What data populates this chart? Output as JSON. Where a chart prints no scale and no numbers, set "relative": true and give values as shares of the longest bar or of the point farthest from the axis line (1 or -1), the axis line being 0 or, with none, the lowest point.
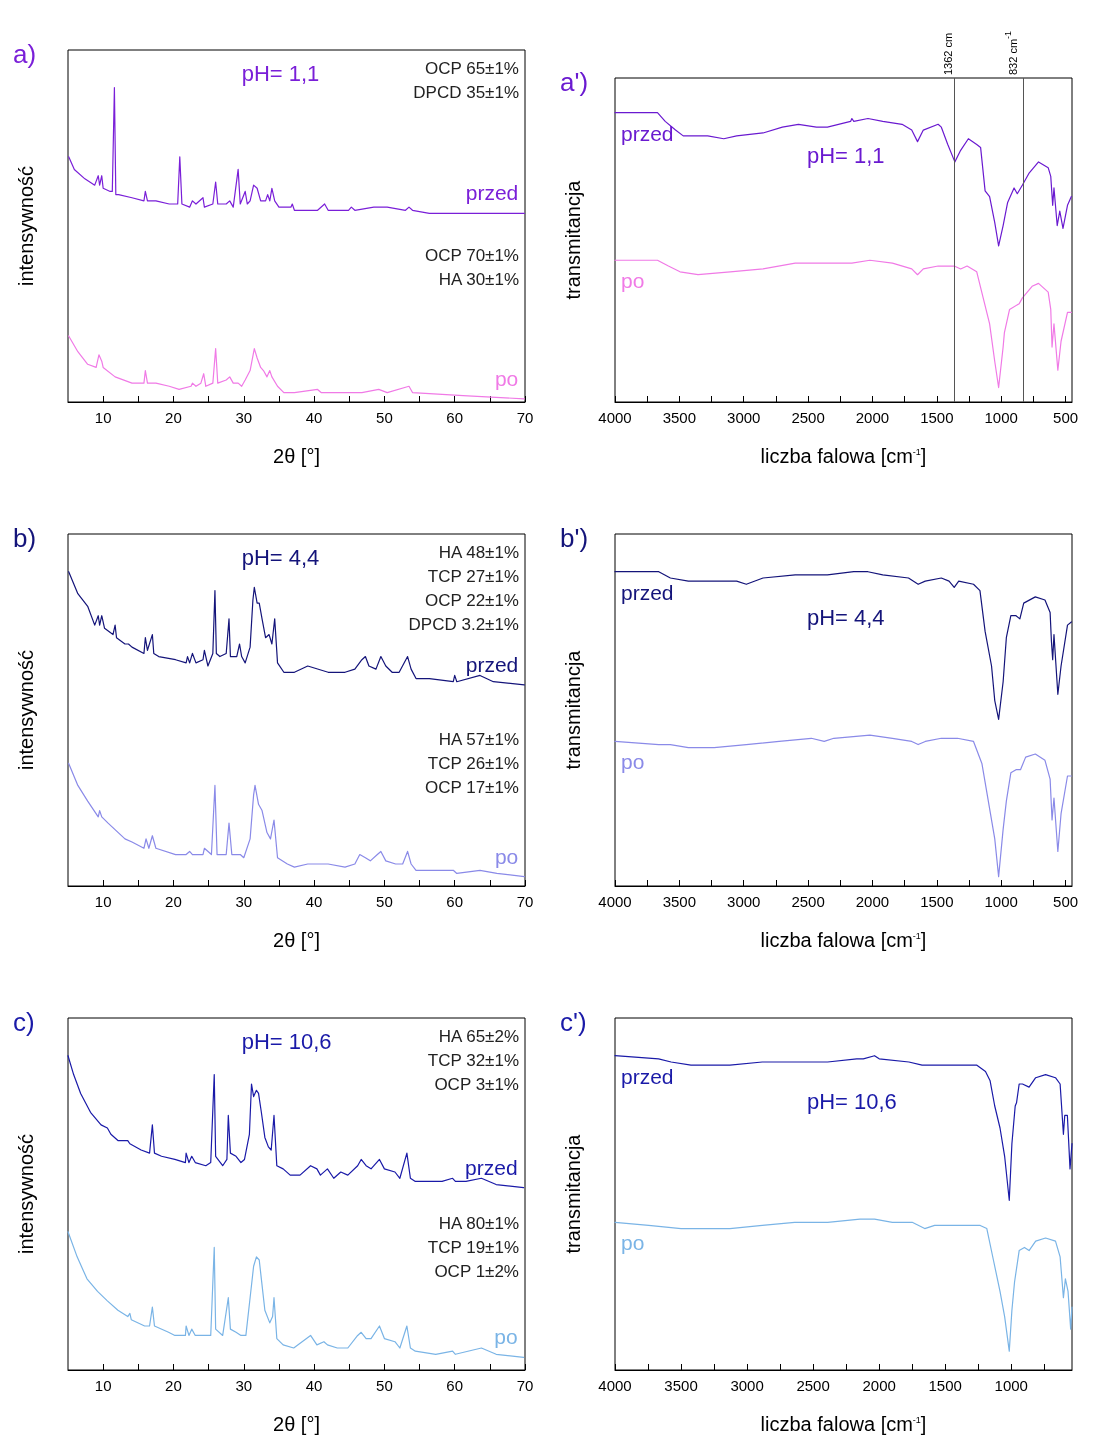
{
  "chart_data": [
    {
      "type": "line",
      "relative": true,
      "title": "a)",
      "xlabel": "2θ [°]",
      "ylabel": "intensywność",
      "xlim": [
        5,
        70
      ],
      "xticks": [
        10,
        {
          "value": 15,
          "label": null
        },
        20,
        {
          "value": 25,
          "label": null
        },
        30,
        {
          "value": 35,
          "label": null
        },
        40,
        {
          "value": 45,
          "label": null
        },
        50,
        {
          "value": 55,
          "label": null
        },
        60,
        {
          "value": 65,
          "label": null
        },
        70
      ],
      "annotations": [
        "pH= 1,1",
        "OCP 65±1%\nDPCD 35±1%",
        "OCP 70±1%\nHA 30±1%"
      ],
      "series": [
        {
          "name": "przed",
          "color": "#7a1fd8",
          "x": [
            5.1,
            5.9,
            7.4,
            8.8,
            9.3,
            9.5,
            9.8,
            10,
            11,
            11.3,
            11.6,
            11.8,
            12.2,
            14.1,
            15.8,
            16,
            16.3,
            17.5,
            19.4,
            20.6,
            20.9,
            21.2,
            22.3,
            22.7,
            23.2,
            24.2,
            24.4,
            25.6,
            26,
            26.3,
            27.5,
            28,
            28.5,
            29.2,
            29.5,
            30.2,
            30.5,
            30.9,
            31.4,
            31.9,
            32.4,
            33.1,
            33.4,
            33.7,
            34,
            34.4,
            35,
            36.7,
            36.9,
            37.2,
            40.5,
            41.5,
            42,
            44.9,
            45.3,
            45.8,
            48.5,
            49.9,
            50.4,
            53,
            53.5,
            54,
            56.4,
            61.2,
            66,
            69.9
          ],
          "values": [
            0.78,
            0.74,
            0.71,
            0.69,
            0.72,
            0.69,
            0.72,
            0.68,
            0.67,
            0.67,
            1,
            0.66,
            0.66,
            0.65,
            0.64,
            0.67,
            0.64,
            0.64,
            0.63,
            0.63,
            0.78,
            0.63,
            0.62,
            0.64,
            0.63,
            0.65,
            0.62,
            0.63,
            0.7,
            0.63,
            0.63,
            0.64,
            0.62,
            0.74,
            0.63,
            0.67,
            0.63,
            0.64,
            0.69,
            0.68,
            0.64,
            0.64,
            0.66,
            0.64,
            0.68,
            0.64,
            0.62,
            0.62,
            0.63,
            0.61,
            0.61,
            0.63,
            0.61,
            0.61,
            0.62,
            0.61,
            0.62,
            0.62,
            0.62,
            0.61,
            0.62,
            0.61,
            0.6,
            0.6,
            0.6,
            0.6
          ]
        },
        {
          "name": "po",
          "color": "#f07ae6",
          "x": [
            5.1,
            6.4,
            7.8,
            9,
            9.4,
            9.8,
            10,
            11.7,
            14.1,
            15.8,
            16,
            16.3,
            17.5,
            19.4,
            20.8,
            22.5,
            22.7,
            23.2,
            23.9,
            24.3,
            24.6,
            25.6,
            26,
            26.3,
            27.5,
            28,
            28.5,
            29.2,
            29.7,
            30.2,
            30.9,
            31.5,
            31.9,
            32.4,
            32.8,
            33.3,
            33.7,
            34,
            34.8,
            35.7,
            37.2,
            40.5,
            41,
            46.8,
            49.2,
            50.4,
            53.5,
            54,
            61.2,
            69.9
          ],
          "values": [
            0.21,
            0.16,
            0.12,
            0.11,
            0.15,
            0.13,
            0.11,
            0.08,
            0.06,
            0.06,
            0.1,
            0.06,
            0.06,
            0.05,
            0.04,
            0.05,
            0.06,
            0.05,
            0.06,
            0.09,
            0.05,
            0.06,
            0.17,
            0.06,
            0.07,
            0.08,
            0.06,
            0.06,
            0.05,
            0.07,
            0.1,
            0.17,
            0.14,
            0.11,
            0.1,
            0.08,
            0.1,
            0.08,
            0.05,
            0.03,
            0.03,
            0.04,
            0.03,
            0.03,
            0.04,
            0.03,
            0.05,
            0.03,
            0.02,
            0.01
          ]
        }
      ]
    },
    {
      "type": "line",
      "relative": true,
      "title": "a')",
      "xlabel": "liczba falowa [cm$^{-1}$]",
      "ylabel": "transmitancja",
      "xlim": [
        4000,
        450
      ],
      "xticks": [
        4000,
        {
          "value": 3750,
          "label": null
        },
        3500,
        {
          "value": 3250,
          "label": null
        },
        3000,
        {
          "value": 2750,
          "label": null
        },
        2500,
        {
          "value": 2250,
          "label": null
        },
        2000,
        {
          "value": 1750,
          "label": null
        },
        1500,
        {
          "value": 1250,
          "label": null
        },
        1000,
        {
          "value": 750,
          "label": null
        },
        500
      ],
      "annotations": [
        "pH= 1,1"
      ],
      "ref_lines": [
        {
          "axis": "x",
          "value": 1362,
          "label": "1362 cm"
        },
        {
          "axis": "x",
          "value": 832,
          "label": "832 cm$^{-1}$"
        }
      ],
      "series": [
        {
          "name": "przed",
          "color": "#6a1ad0",
          "x": [
            4000,
            3670,
            3610,
            3530,
            3470,
            3430,
            3280,
            3155,
            3055,
            2850,
            2700,
            2575,
            2435,
            2350,
            2170,
            2160,
            2145,
            2035,
            1920,
            1770,
            1695,
            1650,
            1605,
            1490,
            1465,
            1415,
            1360,
            1315,
            1255,
            1190,
            1160,
            1125,
            1090,
            1050,
            1020,
            985,
            950,
            900,
            875,
            835,
            785,
            710,
            635,
            615,
            600,
            590,
            565,
            545,
            520,
            485,
            455
          ],
          "values": [
            1,
            1,
            0.97,
            0.94,
            0.92,
            0.92,
            0.92,
            0.91,
            0.92,
            0.93,
            0.95,
            0.96,
            0.95,
            0.95,
            0.97,
            0.98,
            0.97,
            0.98,
            0.97,
            0.96,
            0.94,
            0.9,
            0.94,
            0.96,
            0.95,
            0.89,
            0.83,
            0.87,
            0.91,
            0.89,
            0.88,
            0.73,
            0.71,
            0.62,
            0.54,
            0.61,
            0.69,
            0.74,
            0.72,
            0.75,
            0.79,
            0.83,
            0.81,
            0.78,
            0.68,
            0.74,
            0.61,
            0.66,
            0.6,
            0.68,
            0.71
          ]
        },
        {
          "name": "po",
          "color": "#f07ae6",
          "x": [
            4000,
            3670,
            3585,
            3495,
            3355,
            3105,
            2850,
            2600,
            2350,
            2160,
            2020,
            1845,
            1695,
            1650,
            1605,
            1490,
            1365,
            1315,
            1265,
            1190,
            1140,
            1090,
            1050,
            1020,
            985,
            975,
            935,
            860,
            835,
            760,
            710,
            635,
            615,
            605,
            590,
            560,
            535,
            485,
            455
          ],
          "values": [
            0.49,
            0.49,
            0.47,
            0.45,
            0.44,
            0.45,
            0.46,
            0.48,
            0.48,
            0.48,
            0.49,
            0.48,
            0.46,
            0.44,
            0.46,
            0.47,
            0.47,
            0.46,
            0.47,
            0.45,
            0.36,
            0.27,
            0.14,
            0.05,
            0.19,
            0.24,
            0.32,
            0.34,
            0.36,
            0.4,
            0.41,
            0.38,
            0.32,
            0.19,
            0.27,
            0.11,
            0.21,
            0.31,
            0.31
          ]
        }
      ]
    },
    {
      "type": "line",
      "relative": true,
      "title": "b)",
      "xlabel": "2θ [°]",
      "ylabel": "intensywność",
      "xlim": [
        5,
        70
      ],
      "xticks": [
        10,
        {
          "value": 15,
          "label": null
        },
        20,
        {
          "value": 25,
          "label": null
        },
        30,
        {
          "value": 35,
          "label": null
        },
        40,
        {
          "value": 45,
          "label": null
        },
        50,
        {
          "value": 55,
          "label": null
        },
        60,
        {
          "value": 65,
          "label": null
        },
        70
      ],
      "annotations": [
        "pH= 4,4",
        "HA 48±1%\nTCP 27±1%\nOCP 22±1%\nDPCD 3.2±1%",
        "HA 57±1%\nTCP 26±1%\nOCP 17±1%"
      ],
      "series": [
        {
          "name": "przed",
          "color": "#14147a",
          "x": [
            5.1,
            6.4,
            7.8,
            8.8,
            9.3,
            9.5,
            9.8,
            10.2,
            11.4,
            11.7,
            11.9,
            13.1,
            13.6,
            14.1,
            15.8,
            16,
            16.3,
            17,
            17.2,
            17.9,
            20.3,
            21.8,
            22,
            22.3,
            22.7,
            23.2,
            24.2,
            24.4,
            24.9,
            25.6,
            25.9,
            26.1,
            26.6,
            27.5,
            27.9,
            28.1,
            29,
            29.4,
            29.7,
            30.2,
            30.9,
            31.3,
            31.5,
            31.9,
            32.2,
            32.6,
            33.1,
            33.6,
            34,
            34.4,
            34.8,
            35.7,
            37.2,
            39.1,
            42,
            44.4,
            45.8,
            46.8,
            47.3,
            47.8,
            48.8,
            49.5,
            50.2,
            51.1,
            52.1,
            53.3,
            53.8,
            54.5,
            56.4,
            59.8,
            60,
            60.3,
            63.6,
            65.5,
            69.9
          ],
          "values": [
            1,
            0.93,
            0.89,
            0.83,
            0.86,
            0.83,
            0.86,
            0.82,
            0.8,
            0.83,
            0.79,
            0.77,
            0.77,
            0.76,
            0.74,
            0.79,
            0.75,
            0.8,
            0.74,
            0.73,
            0.72,
            0.71,
            0.73,
            0.71,
            0.74,
            0.71,
            0.72,
            0.75,
            0.7,
            0.74,
            0.94,
            0.74,
            0.73,
            0.74,
            0.85,
            0.73,
            0.73,
            0.77,
            0.73,
            0.71,
            0.76,
            0.91,
            0.95,
            0.9,
            0.9,
            0.85,
            0.79,
            0.8,
            0.77,
            0.85,
            0.71,
            0.68,
            0.68,
            0.7,
            0.68,
            0.68,
            0.69,
            0.72,
            0.73,
            0.7,
            0.69,
            0.73,
            0.7,
            0.68,
            0.68,
            0.73,
            0.69,
            0.66,
            0.66,
            0.65,
            0.67,
            0.65,
            0.67,
            0.65,
            0.64
          ]
        },
        {
          "name": "po",
          "color": "#8a8ae8",
          "x": [
            5.1,
            6.4,
            7.8,
            9.3,
            9.5,
            9.8,
            10.7,
            13.1,
            14.1,
            15.8,
            16.1,
            16.5,
            17,
            17.5,
            20.3,
            21.8,
            22.3,
            22.7,
            24.2,
            24.4,
            25.4,
            25.9,
            26.2,
            27.5,
            27.9,
            28.3,
            29.5,
            30,
            30.9,
            31.4,
            31.6,
            32.1,
            32.6,
            33.3,
            33.8,
            34.3,
            34.8,
            36.2,
            37.2,
            39.1,
            42,
            44.4,
            45.8,
            46.5,
            47.3,
            48,
            49,
            49.5,
            50.2,
            51.6,
            52.6,
            53.3,
            53.8,
            54.5,
            56.4,
            59.8,
            60.3,
            63.6,
            66,
            69.9
          ],
          "values": [
            0.39,
            0.32,
            0.27,
            0.22,
            0.24,
            0.22,
            0.2,
            0.15,
            0.14,
            0.12,
            0.15,
            0.12,
            0.16,
            0.12,
            0.1,
            0.1,
            0.11,
            0.1,
            0.1,
            0.12,
            0.1,
            0.32,
            0.1,
            0.1,
            0.2,
            0.1,
            0.1,
            0.09,
            0.15,
            0.29,
            0.32,
            0.26,
            0.24,
            0.17,
            0.15,
            0.21,
            0.09,
            0.07,
            0.06,
            0.07,
            0.07,
            0.06,
            0.07,
            0.1,
            0.09,
            0.08,
            0.1,
            0.11,
            0.08,
            0.07,
            0.07,
            0.11,
            0.07,
            0.05,
            0.05,
            0.05,
            0.04,
            0.05,
            0.04,
            0.03
          ]
        }
      ]
    },
    {
      "type": "line",
      "relative": true,
      "title": "b')",
      "xlabel": "liczba falowa [cm$^{-1}$]",
      "ylabel": "transmitancja",
      "xlim": [
        4000,
        450
      ],
      "xticks": [
        4000,
        {
          "value": 3750,
          "label": null
        },
        3500,
        {
          "value": 3250,
          "label": null
        },
        3000,
        {
          "value": 2750,
          "label": null
        },
        2500,
        {
          "value": 2250,
          "label": null
        },
        2000,
        {
          "value": 1750,
          "label": null
        },
        1500,
        {
          "value": 1250,
          "label": null
        },
        1000,
        {
          "value": 750,
          "label": null
        },
        500
      ],
      "annotations": [
        "pH= 4,4"
      ],
      "series": [
        {
          "name": "przed",
          "color": "#14147a",
          "x": [
            4000,
            3660,
            3570,
            3430,
            3230,
            3055,
            2980,
            2850,
            2600,
            2350,
            2145,
            2035,
            1920,
            1720,
            1645,
            1590,
            1465,
            1405,
            1365,
            1330,
            1215,
            1165,
            1125,
            1075,
            1050,
            1020,
            985,
            960,
            925,
            885,
            855,
            825,
            735,
            660,
            620,
            610,
            600,
            590,
            560,
            535,
            485,
            455
          ],
          "values": [
            1,
            1,
            0.98,
            0.97,
            0.97,
            0.97,
            0.96,
            0.98,
            0.99,
            0.99,
            1,
            1,
            0.99,
            0.98,
            0.96,
            0.97,
            0.98,
            0.97,
            0.95,
            0.97,
            0.96,
            0.94,
            0.81,
            0.7,
            0.59,
            0.53,
            0.65,
            0.79,
            0.86,
            0.86,
            0.85,
            0.9,
            0.92,
            0.91,
            0.87,
            0.78,
            0.72,
            0.8,
            0.61,
            0.7,
            0.83,
            0.84
          ]
        },
        {
          "name": "po",
          "color": "#8a8ae8",
          "x": [
            4000,
            3660,
            3570,
            3430,
            3230,
            2980,
            2725,
            2475,
            2375,
            2300,
            2020,
            1845,
            1695,
            1645,
            1590,
            1465,
            1340,
            1215,
            1150,
            1100,
            1050,
            1020,
            985,
            960,
            925,
            885,
            850,
            810,
            735,
            660,
            620,
            605,
            590,
            560,
            535,
            485,
            455
          ],
          "values": [
            0.46,
            0.45,
            0.45,
            0.44,
            0.44,
            0.45,
            0.46,
            0.47,
            0.46,
            0.47,
            0.48,
            0.47,
            0.46,
            0.45,
            0.46,
            0.47,
            0.47,
            0.46,
            0.39,
            0.27,
            0.15,
            0.03,
            0.18,
            0.27,
            0.36,
            0.37,
            0.37,
            0.41,
            0.42,
            0.4,
            0.34,
            0.21,
            0.28,
            0.11,
            0.23,
            0.35,
            0.35
          ]
        }
      ]
    },
    {
      "type": "line",
      "relative": true,
      "title": "c)",
      "xlabel": "2θ [°]",
      "ylabel": "intensywność",
      "xlim": [
        5,
        70
      ],
      "xticks": [
        10,
        {
          "value": 15,
          "label": null
        },
        20,
        {
          "value": 25,
          "label": null
        },
        30,
        {
          "value": 35,
          "label": null
        },
        40,
        {
          "value": 45,
          "label": null
        },
        50,
        {
          "value": 55,
          "label": null
        },
        60,
        {
          "value": 65,
          "label": null
        },
        70
      ],
      "annotations": [
        "pH= 10,6",
        "HA 65±2%\nTCP 32±1%\nOCP 3±1%",
        "HA 80±1%\nTCP 19±1%\nOCP 1±2%"
      ],
      "series": [
        {
          "name": "przed",
          "color": "#1a1aa8",
          "x": [
            5,
            5.8,
            6.8,
            8.2,
            9.7,
            10.6,
            11.1,
            12.1,
            13.5,
            13.8,
            15.4,
            16.6,
            17,
            17.3,
            18.3,
            20.2,
            21.7,
            21.8,
            22.2,
            22.6,
            23.1,
            24.6,
            25.3,
            25.8,
            26,
            27,
            27.6,
            27.8,
            28.1,
            28.9,
            29.6,
            30.1,
            30.8,
            31.1,
            31.4,
            31.8,
            32.1,
            32.5,
            33,
            33.5,
            33.9,
            34.3,
            34.7,
            35.6,
            36.6,
            38,
            39.5,
            40.4,
            40.9,
            41.9,
            42.8,
            43.8,
            44.8,
            46.2,
            46.7,
            47.4,
            48.1,
            49.3,
            50,
            51.5,
            52.2,
            53.2,
            53.7,
            54.4,
            56.3,
            58.2,
            59.7,
            60.1,
            61.6,
            63.8,
            65.9,
            69.8
          ],
          "values": [
            1,
            0.94,
            0.88,
            0.82,
            0.78,
            0.77,
            0.75,
            0.73,
            0.73,
            0.72,
            0.7,
            0.69,
            0.78,
            0.69,
            0.68,
            0.67,
            0.66,
            0.69,
            0.66,
            0.68,
            0.66,
            0.65,
            0.66,
            0.94,
            0.68,
            0.65,
            0.67,
            0.81,
            0.69,
            0.68,
            0.66,
            0.67,
            0.75,
            0.91,
            0.87,
            0.89,
            0.88,
            0.82,
            0.74,
            0.71,
            0.7,
            0.81,
            0.65,
            0.64,
            0.62,
            0.62,
            0.65,
            0.64,
            0.62,
            0.64,
            0.61,
            0.63,
            0.62,
            0.65,
            0.67,
            0.65,
            0.64,
            0.67,
            0.64,
            0.63,
            0.61,
            0.69,
            0.61,
            0.6,
            0.6,
            0.6,
            0.61,
            0.6,
            0.6,
            0.61,
            0.59,
            0.58
          ]
        },
        {
          "name": "po",
          "color": "#7ab4e6",
          "x": [
            5,
            6.3,
            7.7,
            9.2,
            10.6,
            12.1,
            13.5,
            13.8,
            14,
            15.9,
            16.6,
            17,
            17.3,
            19.3,
            20.2,
            21.7,
            21.8,
            22.2,
            22.6,
            23.1,
            24.6,
            25.3,
            25.8,
            26,
            27,
            27.8,
            28.1,
            28.9,
            29.6,
            30.3,
            30.9,
            31.4,
            31.8,
            32.2,
            32.5,
            33,
            33.7,
            34.1,
            34.3,
            34.7,
            35.6,
            37.1,
            39.5,
            40.4,
            41.4,
            41.9,
            43.3,
            44.8,
            46.2,
            46.7,
            47.4,
            48.1,
            49.3,
            50,
            51.5,
            52.2,
            53.2,
            53.7,
            54.4,
            57.3,
            59.7,
            60.1,
            63.8,
            65.9,
            69.8
          ],
          "values": [
            0.44,
            0.36,
            0.29,
            0.25,
            0.22,
            0.19,
            0.17,
            0.18,
            0.16,
            0.14,
            0.14,
            0.2,
            0.14,
            0.12,
            0.11,
            0.11,
            0.14,
            0.11,
            0.13,
            0.11,
            0.11,
            0.11,
            0.39,
            0.13,
            0.11,
            0.23,
            0.13,
            0.12,
            0.11,
            0.11,
            0.23,
            0.33,
            0.36,
            0.35,
            0.29,
            0.19,
            0.15,
            0.17,
            0.23,
            0.1,
            0.08,
            0.07,
            0.11,
            0.08,
            0.09,
            0.08,
            0.07,
            0.07,
            0.11,
            0.12,
            0.1,
            0.1,
            0.14,
            0.1,
            0.09,
            0.07,
            0.14,
            0.07,
            0.06,
            0.05,
            0.06,
            0.05,
            0.07,
            0.05,
            0.04
          ]
        }
      ]
    },
    {
      "type": "line",
      "relative": true,
      "title": "c')",
      "xlabel": "liczba falowa [cm$^{-1}$]",
      "ylabel": "transmitancja",
      "xlim": [
        4000,
        540
      ],
      "xticks": [
        4000,
        {
          "value": 3750,
          "label": null
        },
        3500,
        {
          "value": 3250,
          "label": null
        },
        3000,
        {
          "value": 2750,
          "label": null
        },
        2500,
        {
          "value": 2250,
          "label": null
        },
        2000,
        {
          "value": 1750,
          "label": null
        },
        1500,
        {
          "value": 1250,
          "label": null
        },
        1000,
        {
          "value": 750,
          "label": null
        }
      ],
      "annotations": [
        "pH= 10,6"
      ],
      "series": [
        {
          "name": "przed",
          "color": "#1a1aa8",
          "x": [
            4000,
            3670,
            3575,
            3425,
            3130,
            2885,
            2640,
            2390,
            2170,
            2145,
            2120,
            2035,
            2000,
            1775,
            1675,
            1655,
            1580,
            1455,
            1260,
            1195,
            1160,
            1125,
            1085,
            1050,
            1015,
            995,
            970,
            960,
            940,
            915,
            865,
            815,
            740,
            665,
            630,
            605,
            595,
            575,
            555,
            540
          ],
          "values": [
            1,
            0.99,
            0.98,
            0.97,
            0.97,
            0.98,
            0.98,
            0.98,
            0.99,
            0.99,
            0.99,
            1,
            0.99,
            0.98,
            0.97,
            0.97,
            0.97,
            0.97,
            0.97,
            0.95,
            0.92,
            0.84,
            0.77,
            0.68,
            0.54,
            0.72,
            0.84,
            0.85,
            0.91,
            0.91,
            0.9,
            0.93,
            0.94,
            0.93,
            0.91,
            0.75,
            0.81,
            0.81,
            0.64,
            0.72
          ]
        },
        {
          "name": "po",
          "color": "#7ab4e6",
          "x": [
            4000,
            3745,
            3500,
            3375,
            3130,
            2885,
            2640,
            2390,
            2145,
            2035,
            1900,
            1750,
            1655,
            1580,
            1405,
            1235,
            1185,
            1135,
            1085,
            1050,
            1015,
            995,
            975,
            940,
            900,
            865,
            815,
            740,
            665,
            630,
            605,
            590,
            570,
            550,
            540
          ],
          "values": [
            0.47,
            0.46,
            0.45,
            0.45,
            0.45,
            0.46,
            0.47,
            0.47,
            0.48,
            0.48,
            0.47,
            0.47,
            0.45,
            0.46,
            0.46,
            0.46,
            0.45,
            0.35,
            0.25,
            0.17,
            0.06,
            0.19,
            0.28,
            0.38,
            0.39,
            0.38,
            0.41,
            0.42,
            0.41,
            0.36,
            0.23,
            0.29,
            0.25,
            0.13,
            0.2
          ]
        }
      ]
    }
  ]
}
